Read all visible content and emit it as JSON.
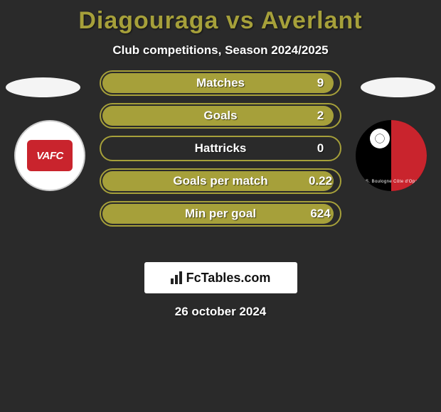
{
  "theme": {
    "background": "#2a2a2a",
    "primary_accent": "#a6a03a",
    "title_color": "#a6a03a",
    "text_color": "#ffffff",
    "halo_color": "rgba(255,255,255,0.95)",
    "brand_box_bg": "#ffffff",
    "brand_text_color": "#111111"
  },
  "header": {
    "title": "Diagouraga vs Averlant",
    "subtitle": "Club competitions, Season 2024/2025"
  },
  "left_badge": {
    "name": "VAFC",
    "text": "VAFC",
    "bg": "#ffffff",
    "inner_bg": "#c9242d"
  },
  "right_badge": {
    "name": "US Boulogne",
    "ring_text": "U.S. Boulogne Côte d'Opale",
    "left_color": "#000000",
    "right_color": "#c9242d"
  },
  "stats": {
    "bar_border": "#a6a03a",
    "bar_fill": "#a6a03a",
    "rows": [
      {
        "label": "Matches",
        "value": "9",
        "fill_pct": 98
      },
      {
        "label": "Goals",
        "value": "2",
        "fill_pct": 98
      },
      {
        "label": "Hattricks",
        "value": "0",
        "fill_pct": 0
      },
      {
        "label": "Goals per match",
        "value": "0.22",
        "fill_pct": 98
      },
      {
        "label": "Min per goal",
        "value": "624",
        "fill_pct": 98
      }
    ]
  },
  "brand": {
    "label": "FcTables.com"
  },
  "footer": {
    "date": "26 october 2024"
  }
}
